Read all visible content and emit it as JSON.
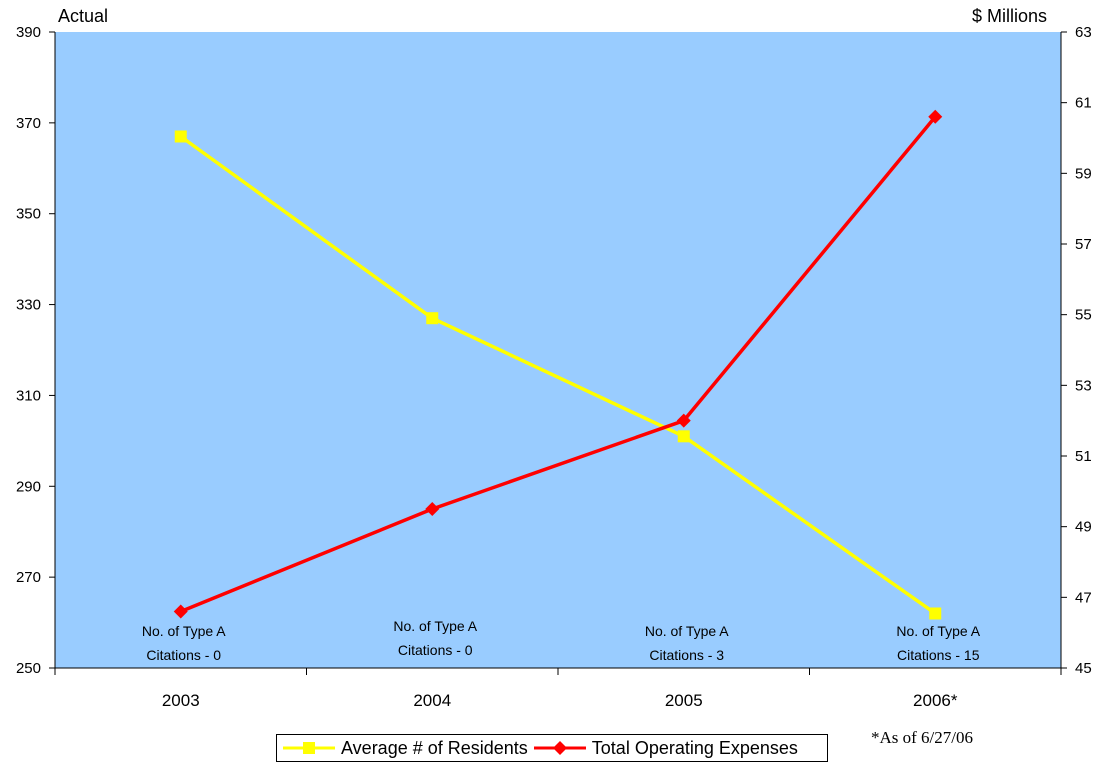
{
  "chart_data": {
    "type": "line",
    "categories": [
      "2003",
      "2004",
      "2005",
      "2006*"
    ],
    "y_left_title": "Actual",
    "y_right_title": "$ Millions",
    "y_left_range": [
      250,
      390
    ],
    "y_left_ticks": [
      250,
      270,
      290,
      310,
      330,
      350,
      370,
      390
    ],
    "y_right_range": [
      45,
      63
    ],
    "y_right_ticks": [
      45,
      47,
      49,
      51,
      53,
      55,
      57,
      59,
      61,
      63
    ],
    "series": [
      {
        "name": "Average # of Residents",
        "axis": "left",
        "color": "#ffff00",
        "marker": "square",
        "values": [
          367,
          327,
          301,
          262
        ]
      },
      {
        "name": "Total Operating Expenses",
        "axis": "right",
        "color": "#ff0000",
        "marker": "diamond",
        "values": [
          46.6,
          49.5,
          52.0,
          60.6
        ]
      }
    ],
    "annotations": [
      {
        "line1": "No. of Type A",
        "line2": "Citations - 0"
      },
      {
        "line1": "No. of Type A",
        "line2": "Citations - 0"
      },
      {
        "line1": "No. of Type A",
        "line2": "Citations - 3"
      },
      {
        "line1": "No. of Type A",
        "line2": "Citations - 15"
      }
    ],
    "footnote": "*As of  6/27/06",
    "plot_background": "#99ccff",
    "legend_position": "bottom",
    "grid": false
  }
}
